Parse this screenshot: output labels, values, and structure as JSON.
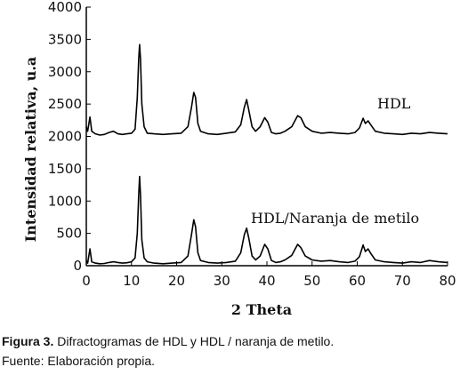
{
  "chart_data": {
    "type": "line",
    "xlabel": "2 Theta",
    "ylabel": "Intensidad relativa, u.a",
    "xlim": [
      0,
      80
    ],
    "ylim": [
      0,
      4000
    ],
    "x_ticks": [
      0,
      10,
      20,
      30,
      40,
      50,
      60,
      70,
      80
    ],
    "y_ticks": [
      0,
      500,
      1000,
      1500,
      2000,
      2500,
      3000,
      3500,
      4000
    ],
    "grid": false,
    "series": [
      {
        "name": "HDL",
        "color": "#000000",
        "points": [
          [
            0.0,
            2150
          ],
          [
            0.3,
            2080
          ],
          [
            0.8,
            2300
          ],
          [
            1.2,
            2080
          ],
          [
            2,
            2040
          ],
          [
            3,
            2020
          ],
          [
            4,
            2030
          ],
          [
            5,
            2060
          ],
          [
            6,
            2080
          ],
          [
            7,
            2040
          ],
          [
            8,
            2030
          ],
          [
            9,
            2040
          ],
          [
            10,
            2050
          ],
          [
            10.8,
            2110
          ],
          [
            11.3,
            2600
          ],
          [
            11.6,
            3200
          ],
          [
            11.8,
            3420
          ],
          [
            12.0,
            3200
          ],
          [
            12.3,
            2500
          ],
          [
            12.8,
            2150
          ],
          [
            13.5,
            2050
          ],
          [
            15,
            2040
          ],
          [
            17,
            2030
          ],
          [
            19,
            2040
          ],
          [
            21,
            2050
          ],
          [
            22.5,
            2150
          ],
          [
            23.3,
            2450
          ],
          [
            23.8,
            2680
          ],
          [
            24.2,
            2600
          ],
          [
            24.7,
            2200
          ],
          [
            25.3,
            2080
          ],
          [
            27,
            2040
          ],
          [
            29,
            2030
          ],
          [
            31,
            2050
          ],
          [
            33,
            2070
          ],
          [
            34.2,
            2180
          ],
          [
            35.0,
            2450
          ],
          [
            35.5,
            2570
          ],
          [
            36.0,
            2400
          ],
          [
            36.7,
            2150
          ],
          [
            37.5,
            2080
          ],
          [
            38.5,
            2150
          ],
          [
            39.5,
            2290
          ],
          [
            40.2,
            2220
          ],
          [
            41,
            2060
          ],
          [
            42,
            2040
          ],
          [
            43,
            2050
          ],
          [
            44,
            2080
          ],
          [
            45.5,
            2150
          ],
          [
            46.8,
            2320
          ],
          [
            47.5,
            2290
          ],
          [
            48.5,
            2150
          ],
          [
            50,
            2080
          ],
          [
            52,
            2050
          ],
          [
            54,
            2060
          ],
          [
            56,
            2050
          ],
          [
            58,
            2040
          ],
          [
            59.5,
            2060
          ],
          [
            60.5,
            2130
          ],
          [
            61.3,
            2280
          ],
          [
            61.8,
            2200
          ],
          [
            62.4,
            2240
          ],
          [
            63.0,
            2180
          ],
          [
            64,
            2080
          ],
          [
            66,
            2050
          ],
          [
            68,
            2040
          ],
          [
            70,
            2030
          ],
          [
            72,
            2050
          ],
          [
            74,
            2040
          ],
          [
            76,
            2060
          ],
          [
            78,
            2050
          ],
          [
            80,
            2040
          ]
        ]
      },
      {
        "name": "HDL/Naranja de metilo",
        "color": "#000000",
        "points": [
          [
            0.0,
            80
          ],
          [
            0.3,
            40
          ],
          [
            0.8,
            260
          ],
          [
            1.2,
            60
          ],
          [
            2,
            40
          ],
          [
            3,
            30
          ],
          [
            4,
            35
          ],
          [
            5,
            50
          ],
          [
            6,
            60
          ],
          [
            7,
            50
          ],
          [
            8,
            40
          ],
          [
            9,
            45
          ],
          [
            10,
            60
          ],
          [
            10.8,
            120
          ],
          [
            11.3,
            500
          ],
          [
            11.6,
            1100
          ],
          [
            11.8,
            1380
          ],
          [
            12.0,
            1100
          ],
          [
            12.3,
            400
          ],
          [
            12.8,
            120
          ],
          [
            13.5,
            60
          ],
          [
            15,
            40
          ],
          [
            17,
            30
          ],
          [
            19,
            40
          ],
          [
            21,
            50
          ],
          [
            22.5,
            150
          ],
          [
            23.3,
            480
          ],
          [
            23.8,
            710
          ],
          [
            24.2,
            600
          ],
          [
            24.7,
            200
          ],
          [
            25.3,
            80
          ],
          [
            27,
            50
          ],
          [
            29,
            40
          ],
          [
            31,
            50
          ],
          [
            33,
            70
          ],
          [
            34.2,
            200
          ],
          [
            35.0,
            480
          ],
          [
            35.5,
            580
          ],
          [
            36.0,
            420
          ],
          [
            36.7,
            150
          ],
          [
            37.5,
            90
          ],
          [
            38.5,
            150
          ],
          [
            39.5,
            330
          ],
          [
            40.2,
            260
          ],
          [
            41,
            80
          ],
          [
            42,
            50
          ],
          [
            43,
            60
          ],
          [
            44,
            90
          ],
          [
            45.5,
            160
          ],
          [
            46.8,
            330
          ],
          [
            47.5,
            280
          ],
          [
            48.5,
            150
          ],
          [
            50,
            90
          ],
          [
            52,
            70
          ],
          [
            54,
            80
          ],
          [
            56,
            60
          ],
          [
            58,
            50
          ],
          [
            59.5,
            70
          ],
          [
            60.5,
            140
          ],
          [
            61.3,
            320
          ],
          [
            61.8,
            220
          ],
          [
            62.4,
            260
          ],
          [
            63.0,
            190
          ],
          [
            64,
            90
          ],
          [
            66,
            60
          ],
          [
            68,
            50
          ],
          [
            70,
            40
          ],
          [
            72,
            60
          ],
          [
            74,
            50
          ],
          [
            76,
            80
          ],
          [
            78,
            60
          ],
          [
            80,
            50
          ]
        ]
      }
    ]
  },
  "caption": {
    "figure_label": "Figura 3.",
    "figure_text": " Difractogramas de HDL y HDL / naranja de metilo.",
    "source": "Fuente: Elaboración propia."
  }
}
